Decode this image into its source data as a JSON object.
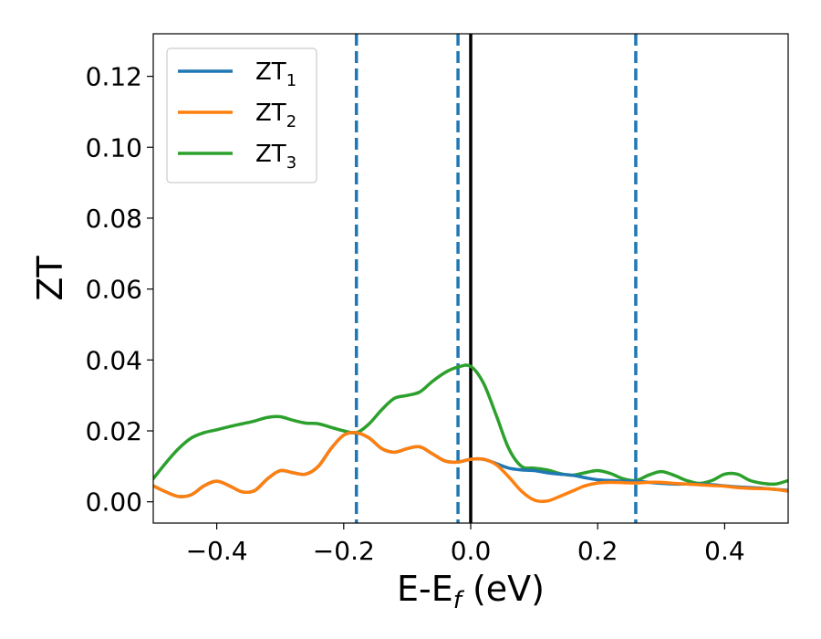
{
  "chart_data": {
    "type": "line",
    "xlabel_main": "E-E",
    "xlabel_sub": "f",
    "xlabel_unit": " (eV)",
    "ylabel": "ZT",
    "xlim": [
      -0.5,
      0.5
    ],
    "ylim": [
      -0.006,
      0.132
    ],
    "xticks": [
      -0.4,
      -0.2,
      0.0,
      0.2,
      0.4
    ],
    "xtick_labels": [
      "−0.4",
      "−0.2",
      "0.0",
      "0.2",
      "0.4"
    ],
    "yticks": [
      0.0,
      0.02,
      0.04,
      0.06,
      0.08,
      0.1,
      0.12
    ],
    "ytick_labels": [
      "0.00",
      "0.02",
      "0.04",
      "0.06",
      "0.08",
      "0.10",
      "0.12"
    ],
    "grid": false,
    "legend_position": "top-left",
    "vlines_dashed": [
      -0.18,
      -0.02,
      0.26
    ],
    "vline_solid": 0.0,
    "series": [
      {
        "name": "ZT",
        "sub": "1",
        "color": "#1f77b4",
        "x": [
          -0.5,
          -0.48,
          -0.46,
          -0.44,
          -0.42,
          -0.4,
          -0.38,
          -0.36,
          -0.34,
          -0.32,
          -0.3,
          -0.28,
          -0.26,
          -0.24,
          -0.22,
          -0.2,
          -0.18,
          -0.16,
          -0.14,
          -0.12,
          -0.1,
          -0.08,
          -0.06,
          -0.04,
          -0.02,
          0.0,
          0.02,
          0.04,
          0.06,
          0.08,
          0.1,
          0.12,
          0.14,
          0.16,
          0.18,
          0.2,
          0.22,
          0.24,
          0.26,
          0.28,
          0.3,
          0.32,
          0.34,
          0.36,
          0.38,
          0.4,
          0.42,
          0.44,
          0.46,
          0.48,
          0.5
        ],
        "y": [
          0.0045,
          0.0028,
          0.0015,
          0.002,
          0.0045,
          0.0058,
          0.0045,
          0.0028,
          0.0032,
          0.0065,
          0.0088,
          0.0082,
          0.0078,
          0.01,
          0.015,
          0.0188,
          0.0195,
          0.018,
          0.015,
          0.014,
          0.015,
          0.0155,
          0.0135,
          0.0115,
          0.0112,
          0.012,
          0.012,
          0.0108,
          0.0095,
          0.009,
          0.0088,
          0.0082,
          0.0078,
          0.0075,
          0.0068,
          0.0062,
          0.006,
          0.0058,
          0.0058,
          0.0055,
          0.0052,
          0.005,
          0.005,
          0.005,
          0.0048,
          0.0045,
          0.0042,
          0.004,
          0.0038,
          0.0035,
          0.0032
        ]
      },
      {
        "name": "ZT",
        "sub": "2",
        "color": "#ff7f0e",
        "x": [
          -0.5,
          -0.48,
          -0.46,
          -0.44,
          -0.42,
          -0.4,
          -0.38,
          -0.36,
          -0.34,
          -0.32,
          -0.3,
          -0.28,
          -0.26,
          -0.24,
          -0.22,
          -0.2,
          -0.18,
          -0.16,
          -0.14,
          -0.12,
          -0.1,
          -0.08,
          -0.06,
          -0.04,
          -0.02,
          0.0,
          0.02,
          0.04,
          0.06,
          0.08,
          0.1,
          0.12,
          0.14,
          0.16,
          0.18,
          0.2,
          0.22,
          0.24,
          0.26,
          0.28,
          0.3,
          0.32,
          0.34,
          0.36,
          0.38,
          0.4,
          0.42,
          0.44,
          0.46,
          0.48,
          0.5
        ],
        "y": [
          0.0045,
          0.0028,
          0.0015,
          0.002,
          0.0045,
          0.0058,
          0.0045,
          0.0028,
          0.0032,
          0.0065,
          0.0088,
          0.0082,
          0.0078,
          0.01,
          0.015,
          0.0188,
          0.0195,
          0.018,
          0.015,
          0.014,
          0.015,
          0.0155,
          0.0135,
          0.0115,
          0.0112,
          0.012,
          0.012,
          0.0105,
          0.007,
          0.003,
          0.0005,
          0.0002,
          0.0015,
          0.003,
          0.0045,
          0.0053,
          0.0055,
          0.0054,
          0.0053,
          0.0055,
          0.0055,
          0.0052,
          0.005,
          0.0048,
          0.0046,
          0.0044,
          0.004,
          0.0038,
          0.0037,
          0.0035,
          0.003
        ]
      },
      {
        "name": "ZT",
        "sub": "3",
        "color": "#2ca02c",
        "x": [
          -0.5,
          -0.48,
          -0.46,
          -0.44,
          -0.42,
          -0.4,
          -0.38,
          -0.36,
          -0.34,
          -0.32,
          -0.3,
          -0.28,
          -0.26,
          -0.24,
          -0.22,
          -0.2,
          -0.18,
          -0.16,
          -0.14,
          -0.12,
          -0.1,
          -0.08,
          -0.06,
          -0.04,
          -0.02,
          0.0,
          0.02,
          0.04,
          0.06,
          0.08,
          0.1,
          0.12,
          0.14,
          0.16,
          0.18,
          0.2,
          0.22,
          0.24,
          0.26,
          0.28,
          0.3,
          0.32,
          0.34,
          0.36,
          0.38,
          0.4,
          0.42,
          0.44,
          0.46,
          0.48,
          0.5
        ],
        "y": [
          0.0065,
          0.011,
          0.015,
          0.018,
          0.0195,
          0.0203,
          0.0212,
          0.022,
          0.0228,
          0.0238,
          0.024,
          0.023,
          0.0222,
          0.022,
          0.021,
          0.02,
          0.0195,
          0.022,
          0.026,
          0.0292,
          0.03,
          0.031,
          0.034,
          0.0365,
          0.038,
          0.0382,
          0.0335,
          0.0245,
          0.015,
          0.01,
          0.0095,
          0.009,
          0.008,
          0.0075,
          0.0082,
          0.0088,
          0.008,
          0.0065,
          0.006,
          0.0075,
          0.0085,
          0.0075,
          0.006,
          0.0052,
          0.006,
          0.0078,
          0.0078,
          0.006,
          0.0052,
          0.005,
          0.006
        ]
      }
    ]
  }
}
